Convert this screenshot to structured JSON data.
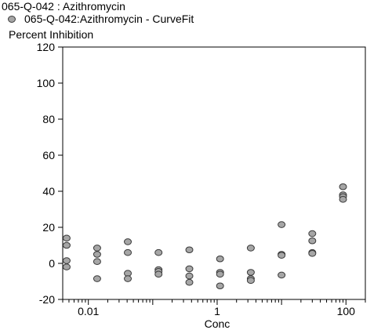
{
  "header": {
    "title": "065-Q-042  : Azithromycin"
  },
  "chart_data": {
    "type": "scatter",
    "title": "065-Q-042  : Azithromycin",
    "xlabel": "Conc",
    "ylabel": "Percent Inhibition",
    "xscale": "log",
    "xlim": [
      0.004,
      200
    ],
    "ylim": [
      -20,
      120
    ],
    "yticks": [
      -20,
      0,
      20,
      40,
      60,
      80,
      100,
      120
    ],
    "xticks": [
      {
        "value": 0.01,
        "label": "0.01"
      },
      {
        "value": 1,
        "label": "1"
      },
      {
        "value": 100,
        "label": "100"
      }
    ],
    "legend_position": "top-left",
    "marker_fill": "#a6a6a6",
    "marker_edge": "#3a3a3a",
    "series": [
      {
        "name": "065-Q-042:Azithromycin - CurveFit",
        "points": [
          {
            "x": 0.0046,
            "y": 14
          },
          {
            "x": 0.0046,
            "y": 10
          },
          {
            "x": 0.0046,
            "y": 1.5
          },
          {
            "x": 0.0046,
            "y": -2
          },
          {
            "x": 0.0137,
            "y": 8.5
          },
          {
            "x": 0.0137,
            "y": 5
          },
          {
            "x": 0.0137,
            "y": 1
          },
          {
            "x": 0.0137,
            "y": -8.5
          },
          {
            "x": 0.041,
            "y": 12
          },
          {
            "x": 0.041,
            "y": 6
          },
          {
            "x": 0.041,
            "y": -5.5
          },
          {
            "x": 0.041,
            "y": -8.5
          },
          {
            "x": 0.123,
            "y": 6
          },
          {
            "x": 0.123,
            "y": -3.5
          },
          {
            "x": 0.123,
            "y": -4.5
          },
          {
            "x": 0.123,
            "y": -6
          },
          {
            "x": 0.37,
            "y": 7.5
          },
          {
            "x": 0.37,
            "y": -3
          },
          {
            "x": 0.37,
            "y": -7
          },
          {
            "x": 0.37,
            "y": -10.5
          },
          {
            "x": 1.11,
            "y": 2.5
          },
          {
            "x": 1.11,
            "y": -5
          },
          {
            "x": 1.11,
            "y": -6
          },
          {
            "x": 1.11,
            "y": -12.5
          },
          {
            "x": 3.33,
            "y": 8.5
          },
          {
            "x": 3.33,
            "y": -5
          },
          {
            "x": 3.33,
            "y": -8.5
          },
          {
            "x": 3.33,
            "y": -9.5
          },
          {
            "x": 10,
            "y": 21.5
          },
          {
            "x": 10,
            "y": 5
          },
          {
            "x": 10,
            "y": 4.5
          },
          {
            "x": 10,
            "y": -6.5
          },
          {
            "x": 30,
            "y": 16.5
          },
          {
            "x": 30,
            "y": 12.5
          },
          {
            "x": 30,
            "y": 6
          },
          {
            "x": 30,
            "y": 5.5
          },
          {
            "x": 90,
            "y": 42.5
          },
          {
            "x": 90,
            "y": 38
          },
          {
            "x": 90,
            "y": 37
          },
          {
            "x": 90,
            "y": 35.5
          }
        ]
      }
    ]
  }
}
